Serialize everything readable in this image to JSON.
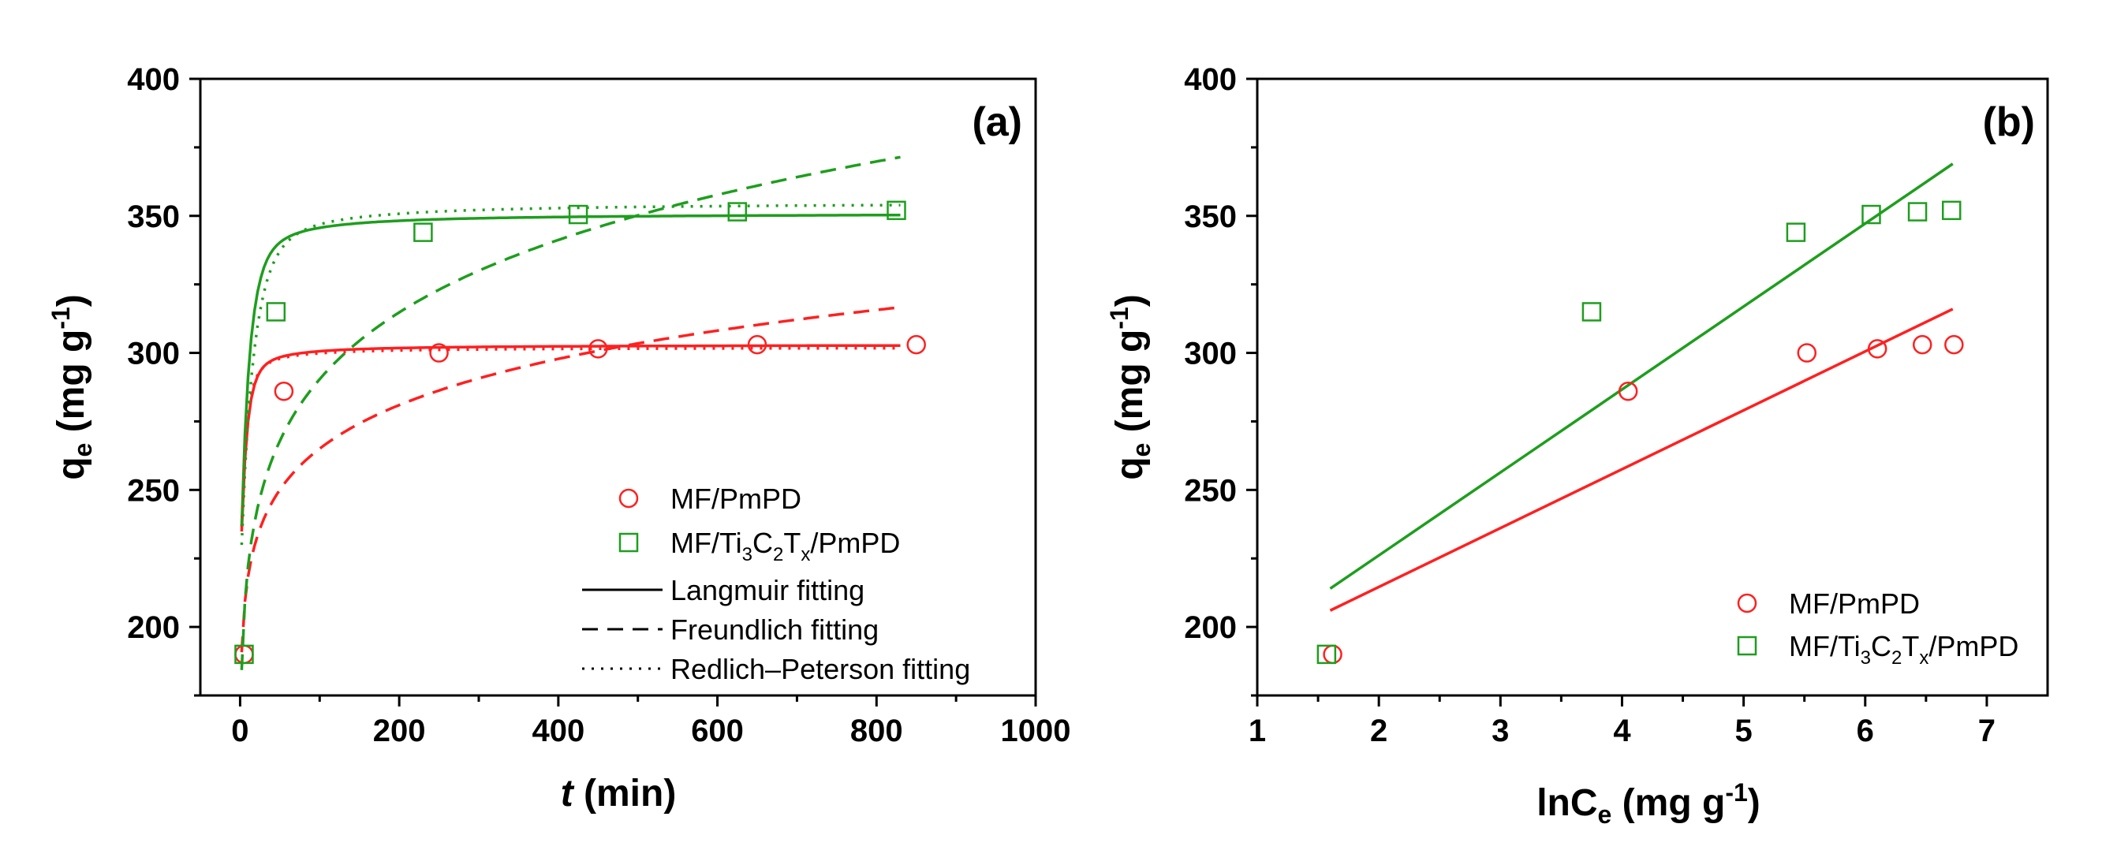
{
  "chart_data": [
    {
      "type": "scatter",
      "panel_label": "(a)",
      "xlabel_italic": "t",
      "xlabel_rest": " (min)",
      "ylabel_main": "q",
      "ylabel_sub": "e",
      "ylabel_unit_open": " (mg g",
      "ylabel_unit_sup": "-1",
      "ylabel_unit_close": ")",
      "xlim": [
        -50,
        1000
      ],
      "ylim": [
        175,
        400
      ],
      "xticks": [
        0,
        200,
        400,
        600,
        800,
        1000
      ],
      "yticks": [
        200,
        250,
        300,
        350,
        400
      ],
      "grid": false,
      "legend_position": "lower-right",
      "series": [
        {
          "name": "MF/PmPD",
          "color": "#ff2020",
          "marker": "circle",
          "x": [
            5,
            55,
            250,
            450,
            650,
            850
          ],
          "y": [
            190,
            286,
            300,
            301.5,
            303,
            303
          ]
        },
        {
          "name_parts": [
            "MF/Ti",
            "3",
            "C",
            "2",
            "T",
            "x",
            "/PmPD"
          ],
          "color": "#1e9e1e",
          "marker": "square",
          "x": [
            5,
            45,
            230,
            425,
            625,
            825
          ],
          "y": [
            190,
            315,
            344,
            350.5,
            351.5,
            352
          ]
        }
      ],
      "fits": [
        {
          "model": "Langmuir",
          "series": 0,
          "qm": 303,
          "k": 0.045,
          "x0": 2
        },
        {
          "model": "Langmuir",
          "series": 1,
          "qm": 351,
          "k": 0.03,
          "x0": 2
        },
        {
          "model": "Freundlich",
          "series": 0,
          "kf": 180,
          "n": 11.9,
          "x0": 2
        },
        {
          "model": "Freundlich",
          "series": 1,
          "kf": 170,
          "n": 8.6,
          "x0": 2
        },
        {
          "model": "Redlich-Peterson",
          "series": 0,
          "qm": 302,
          "k": 0.05,
          "x0": 2
        },
        {
          "model": "Redlich-Peterson",
          "series": 1,
          "qm": 355,
          "k": 0.02,
          "x0": 2
        }
      ],
      "legend_lines": [
        {
          "label": "Langmuir fitting",
          "dash": "solid"
        },
        {
          "label": "Freundlich fitting",
          "dash": "dashed"
        },
        {
          "label": "Redlich–Peterson fitting",
          "dash": "dotted"
        }
      ]
    },
    {
      "type": "scatter",
      "panel_label": "(b)",
      "xlabel_main": "lnC",
      "xlabel_sub": "e",
      "xlabel_unit_open": " (mg g",
      "xlabel_unit_sup": "-1",
      "xlabel_unit_close": ")",
      "ylabel_main": "q",
      "ylabel_sub": "e",
      "ylabel_unit_open": " (mg g",
      "ylabel_unit_sup": "-1",
      "ylabel_unit_close": ")",
      "xlim": [
        1,
        7.5
      ],
      "ylim": [
        175,
        400
      ],
      "xticks": [
        1,
        2,
        3,
        4,
        5,
        6,
        7
      ],
      "yticks": [
        200,
        250,
        300,
        350,
        400
      ],
      "grid": false,
      "legend_position": "lower-right",
      "series": [
        {
          "name": "MF/PmPD",
          "color": "#ff2020",
          "marker": "circle",
          "x": [
            1.62,
            4.05,
            5.52,
            6.1,
            6.47,
            6.73
          ],
          "y": [
            190,
            286,
            300,
            301.5,
            303,
            303
          ],
          "fit_line": {
            "x": [
              1.6,
              6.72
            ],
            "y": [
              206,
              316
            ]
          }
        },
        {
          "name_parts": [
            "MF/Ti",
            "3",
            "C",
            "2",
            "T",
            "x",
            "/PmPD"
          ],
          "color": "#1e9e1e",
          "marker": "square",
          "x": [
            1.57,
            3.75,
            5.43,
            6.05,
            6.43,
            6.71
          ],
          "y": [
            190,
            315,
            344,
            350.5,
            351.5,
            352
          ],
          "fit_line": {
            "x": [
              1.6,
              6.72
            ],
            "y": [
              214,
              369
            ]
          }
        }
      ]
    }
  ]
}
